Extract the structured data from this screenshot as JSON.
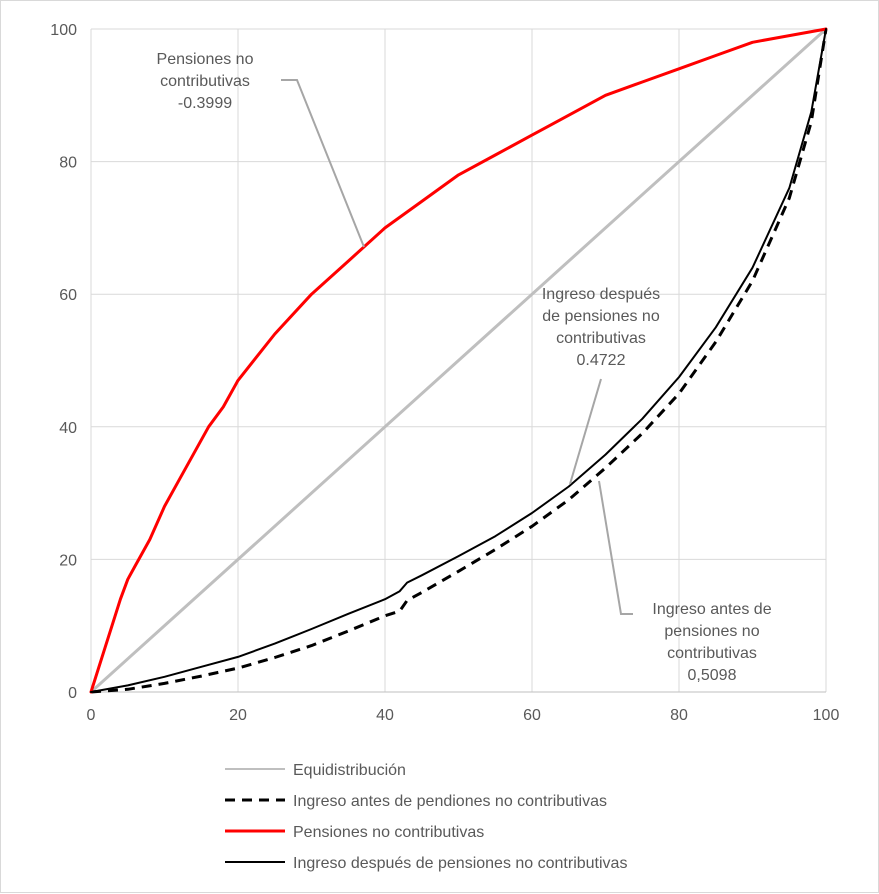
{
  "chart_data": {
    "type": "line",
    "title": "",
    "xlabel": "",
    "ylabel": "",
    "xlim": [
      0,
      100
    ],
    "ylim": [
      0,
      100
    ],
    "grid": true,
    "legend_placement": "bottom",
    "x_ticks": [
      "0",
      "20",
      "40",
      "60",
      "80",
      "100"
    ],
    "y_ticks": [
      "0",
      "20",
      "40",
      "60",
      "80",
      "100"
    ],
    "series": [
      {
        "name": "Equidistribución",
        "color": "#bfbfbf",
        "style": "solid",
        "x": [
          0,
          100
        ],
        "y": [
          0,
          100
        ]
      },
      {
        "name": "Ingreso antes de pendiones no contributivas",
        "color": "#000000",
        "style": "dashed",
        "x": [
          0,
          5,
          10,
          15,
          20,
          25,
          30,
          35,
          40,
          42,
          43,
          45,
          50,
          55,
          60,
          65,
          70,
          75,
          80,
          85,
          90,
          95,
          98,
          100
        ],
        "y": [
          0,
          0.4,
          1.3,
          2.4,
          3.6,
          5.2,
          7.0,
          9.2,
          11.5,
          12.2,
          13.8,
          15.0,
          18.2,
          21.5,
          25.0,
          29.0,
          33.8,
          39.0,
          45.0,
          52.8,
          62.0,
          74.5,
          86.0,
          100
        ]
      },
      {
        "name": "Pensiones no contributivas",
        "color": "#ff0000",
        "style": "solid",
        "x": [
          0,
          2,
          4,
          5,
          6,
          8,
          10,
          12,
          14,
          16,
          18,
          20,
          25,
          30,
          35,
          40,
          45,
          50,
          55,
          60,
          65,
          70,
          75,
          80,
          85,
          90,
          95,
          100
        ],
        "y": [
          0,
          7,
          14,
          17,
          19,
          23,
          28,
          32,
          36,
          40,
          43,
          47,
          54,
          60,
          65,
          70,
          74,
          78,
          81,
          84,
          87,
          90,
          92,
          94,
          96,
          98,
          99,
          100
        ]
      },
      {
        "name": "Ingreso después de pensiones no contributivas",
        "color": "#000000",
        "style": "solid",
        "x": [
          0,
          5,
          10,
          15,
          20,
          25,
          30,
          35,
          40,
          42,
          43,
          45,
          50,
          55,
          60,
          65,
          70,
          75,
          80,
          85,
          90,
          95,
          98,
          100
        ],
        "y": [
          0,
          1.0,
          2.3,
          3.8,
          5.3,
          7.3,
          9.5,
          11.8,
          14.0,
          15.2,
          16.5,
          17.6,
          20.5,
          23.5,
          27.0,
          31.0,
          35.8,
          41.2,
          47.5,
          55.0,
          64.0,
          76.0,
          87.5,
          100
        ]
      }
    ],
    "annotations": [
      {
        "lines": [
          "Pensiones no",
          "contributivas",
          "-0.3999"
        ]
      },
      {
        "lines": [
          "Ingreso después",
          "de pensiones no",
          "contributivas",
          "0.4722"
        ]
      },
      {
        "lines": [
          "Ingreso antes de",
          "pensiones no",
          "contributivas",
          "0,5098"
        ]
      }
    ]
  }
}
